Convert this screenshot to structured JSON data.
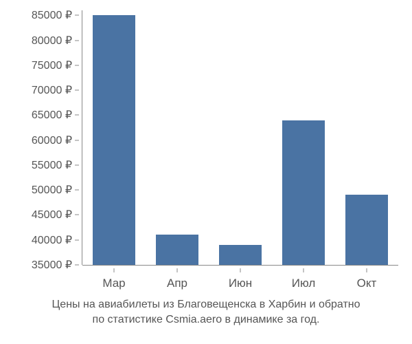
{
  "chart": {
    "type": "bar",
    "background_color": "#ffffff",
    "bar_color": "#4a73a3",
    "text_color": "#555555",
    "axis_color": "#888888",
    "tick_fontsize": 16,
    "xtick_fontsize": 17,
    "caption_fontsize": 16,
    "ylim_min": 35000,
    "ylim_max": 86000,
    "ytick_step": 5000,
    "y_suffix": " ₽",
    "yticks": [
      35000,
      40000,
      45000,
      50000,
      55000,
      60000,
      65000,
      70000,
      75000,
      80000,
      85000
    ],
    "categories": [
      "Мар",
      "Апр",
      "Июн",
      "Июл",
      "Окт"
    ],
    "values": [
      85000,
      41000,
      39000,
      64000,
      49000
    ],
    "bar_width_ratio": 0.68,
    "caption_line1": "Цены на авиабилеты из Благовещенска в Харбин и обратно",
    "caption_line2": "по статистике Csmia.aero в динамике за год."
  }
}
